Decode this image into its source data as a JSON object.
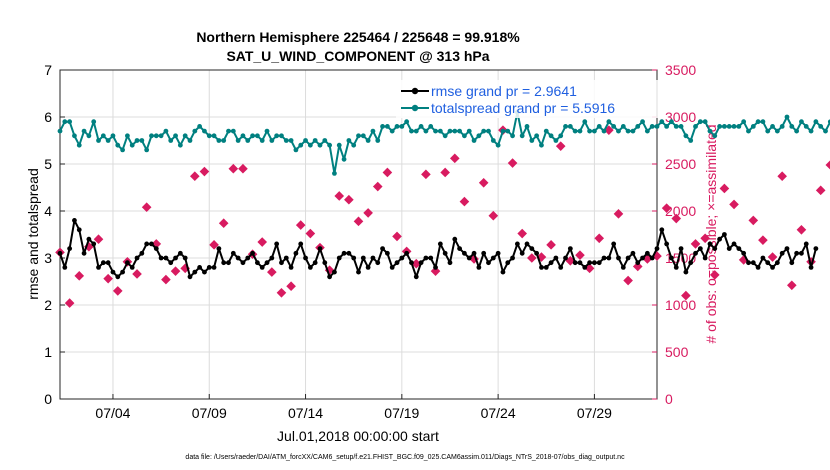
{
  "chart_data": {
    "type": "line",
    "title_line1": "Northern Hemisphere 225464 / 225648 = 99.918%",
    "title_line2": "SAT_U_WIND_COMPONENT @ 313 hPa",
    "xlabel": "Jul.01,2018 00:00:00 start",
    "ylabel_left": "rmse and totalspread",
    "ylabel_right": "# of obs: o=possible; ×=assimilated",
    "footer": "data file: /Users/raeder/DAI/ATM_forcXX/CAM6_setup/f.e21.FHIST_BGC.f09_025.CAM6assim.011/Diags_NTrS_2018-07/obs_diag_output.nc",
    "x_axis": {
      "range_days": [
        1.25,
        32.25
      ],
      "ticks": [
        4,
        9,
        14,
        19,
        24,
        29
      ],
      "tick_labels": [
        "07/04",
        "07/09",
        "07/14",
        "07/19",
        "07/24",
        "07/29"
      ]
    },
    "left_axis": {
      "ylim": [
        0,
        7
      ],
      "ticks": [
        "0",
        "1",
        "2",
        "3",
        "4",
        "5",
        "6",
        "7"
      ]
    },
    "right_axis": {
      "ylim": [
        0,
        3500
      ],
      "ticks": [
        "0",
        "500",
        "1000",
        "1500",
        "2000",
        "2500",
        "3000",
        "3500"
      ]
    },
    "grid": true,
    "legend_position": "top-right",
    "x_start_day": 1.25,
    "x_step_days": 0.25,
    "series": [
      {
        "name": "rmse grand pr = 2.9641",
        "axis": "left",
        "color": "#000000",
        "marker": "circle",
        "values": [
          3.1,
          2.8,
          3.2,
          3.8,
          3.6,
          3.1,
          3.4,
          3.3,
          2.8,
          2.9,
          2.9,
          2.7,
          2.6,
          2.7,
          2.9,
          2.8,
          3.0,
          3.1,
          3.3,
          3.3,
          3.2,
          3.0,
          3.0,
          2.9,
          3.0,
          3.1,
          3.0,
          2.6,
          2.7,
          2.8,
          2.7,
          2.8,
          2.8,
          3.2,
          2.9,
          2.9,
          3.1,
          3.0,
          2.9,
          3.0,
          3.1,
          2.9,
          2.8,
          2.9,
          3.0,
          3.3,
          2.9,
          3.0,
          2.8,
          3.1,
          3.3,
          3.0,
          2.8,
          2.9,
          3.2,
          2.9,
          2.6,
          2.7,
          3.0,
          3.1,
          3.1,
          3.0,
          2.7,
          3.0,
          2.8,
          3.0,
          2.9,
          3.2,
          3.1,
          2.8,
          2.9,
          3.0,
          3.1,
          2.9,
          2.6,
          2.9,
          3.0,
          3.0,
          2.8,
          3.3,
          3.1,
          2.9,
          3.4,
          3.2,
          3.1,
          3.0,
          3.1,
          2.8,
          3.1,
          2.9,
          3.0,
          3.1,
          2.7,
          2.9,
          3.0,
          3.3,
          3.1,
          3.3,
          3.2,
          3.1,
          2.8,
          2.8,
          2.9,
          3.0,
          2.8,
          3.0,
          3.2,
          2.9,
          2.9,
          2.8,
          2.9,
          2.9,
          2.9,
          3.0,
          3.0,
          3.3,
          3.0,
          2.8,
          3.0,
          3.1,
          2.9,
          3.0,
          3.1,
          3.0,
          3.2,
          3.6,
          3.3,
          3.0,
          2.8,
          3.2,
          2.7,
          2.9,
          3.1,
          3.2,
          3.0,
          3.3,
          3.2,
          3.4,
          3.5,
          3.2,
          3.3,
          3.2,
          3.1,
          2.9,
          2.9,
          2.8,
          3.0,
          2.9,
          2.8,
          2.9,
          3.1,
          3.2,
          2.9,
          3.1,
          3.1,
          3.3,
          2.8,
          3.2
        ]
      },
      {
        "name": "totalspread grand pr = 5.5916",
        "axis": "left",
        "color": "#008080",
        "marker": "circle",
        "values": [
          5.7,
          5.9,
          5.9,
          5.6,
          5.4,
          5.7,
          5.6,
          5.9,
          5.5,
          5.6,
          5.5,
          5.6,
          5.4,
          5.3,
          5.6,
          5.4,
          5.5,
          5.5,
          5.3,
          5.6,
          5.6,
          5.6,
          5.7,
          5.5,
          5.6,
          5.4,
          5.6,
          5.5,
          5.7,
          5.8,
          5.7,
          5.6,
          5.6,
          5.5,
          5.5,
          5.7,
          5.7,
          5.5,
          5.6,
          5.5,
          5.6,
          5.6,
          5.5,
          5.7,
          5.5,
          5.6,
          5.6,
          5.5,
          5.5,
          5.3,
          5.4,
          5.5,
          5.4,
          5.5,
          5.4,
          5.5,
          5.4,
          4.8,
          5.4,
          5.1,
          5.5,
          5.4,
          5.6,
          5.6,
          5.5,
          5.7,
          5.5,
          5.8,
          5.8,
          5.7,
          5.8,
          5.8,
          5.9,
          5.7,
          5.7,
          5.8,
          5.7,
          5.8,
          5.7,
          5.7,
          5.6,
          5.7,
          5.7,
          5.7,
          5.6,
          5.7,
          5.5,
          5.6,
          5.7,
          5.7,
          5.5,
          5.4,
          5.7,
          5.7,
          5.6,
          6.1,
          5.6,
          5.8,
          5.5,
          5.6,
          5.4,
          5.7,
          5.6,
          5.5,
          5.6,
          5.8,
          5.8,
          5.7,
          5.7,
          5.9,
          5.7,
          5.7,
          5.8,
          5.7,
          5.9,
          5.8,
          5.7,
          5.8,
          5.7,
          5.7,
          5.8,
          5.9,
          5.7,
          5.8,
          5.8,
          5.9,
          5.8,
          5.9,
          5.8,
          5.8,
          5.6,
          5.5,
          5.8,
          5.9,
          5.9,
          5.7,
          5.6,
          5.8,
          5.8,
          5.8,
          5.8,
          5.8,
          5.9,
          5.7,
          5.8,
          5.9,
          5.9,
          5.7,
          5.8,
          5.7,
          5.8,
          6.0,
          5.8,
          5.7,
          5.9,
          5.8,
          5.7,
          5.9,
          5.8,
          5.7,
          5.9,
          5.8
        ]
      }
    ],
    "scatter": {
      "name": "# of obs",
      "axis": "right",
      "color": "#d81b60",
      "x_start_day": 1.25,
      "x_step_days": 0.5,
      "values": [
        1560,
        1020,
        1310,
        1620,
        1700,
        1280,
        1150,
        1460,
        1330,
        2040,
        1650,
        1270,
        1360,
        1390,
        2370,
        2420,
        1640,
        1870,
        2450,
        2450,
        1540,
        1670,
        1350,
        1130,
        1200,
        1850,
        1760,
        1610,
        1370,
        2160,
        2120,
        1890,
        1980,
        2260,
        2410,
        1730,
        1570,
        1440,
        2390,
        1360,
        2410,
        2560,
        2100,
        1490,
        2300,
        1950,
        2860,
        2510,
        1760,
        1500,
        1510,
        1640,
        2690,
        1470,
        1530,
        1390,
        1710,
        2860,
        1970,
        1260,
        1410,
        1490,
        1520,
        2030,
        1920,
        1100,
        1650,
        1710,
        1320,
        2240,
        2070,
        1480,
        1900,
        1690,
        1510,
        2370,
        1210,
        1800,
        1460,
        2220,
        2490,
        2100,
        1620,
        1170,
        1630,
        1480,
        1370,
        1640,
        1880,
        1960,
        1530,
        1980,
        1620,
        1560,
        1650,
        1480,
        1810,
        2120,
        1720,
        1770,
        1490,
        1750,
        2310,
        2220,
        2150,
        0
      ]
    }
  }
}
